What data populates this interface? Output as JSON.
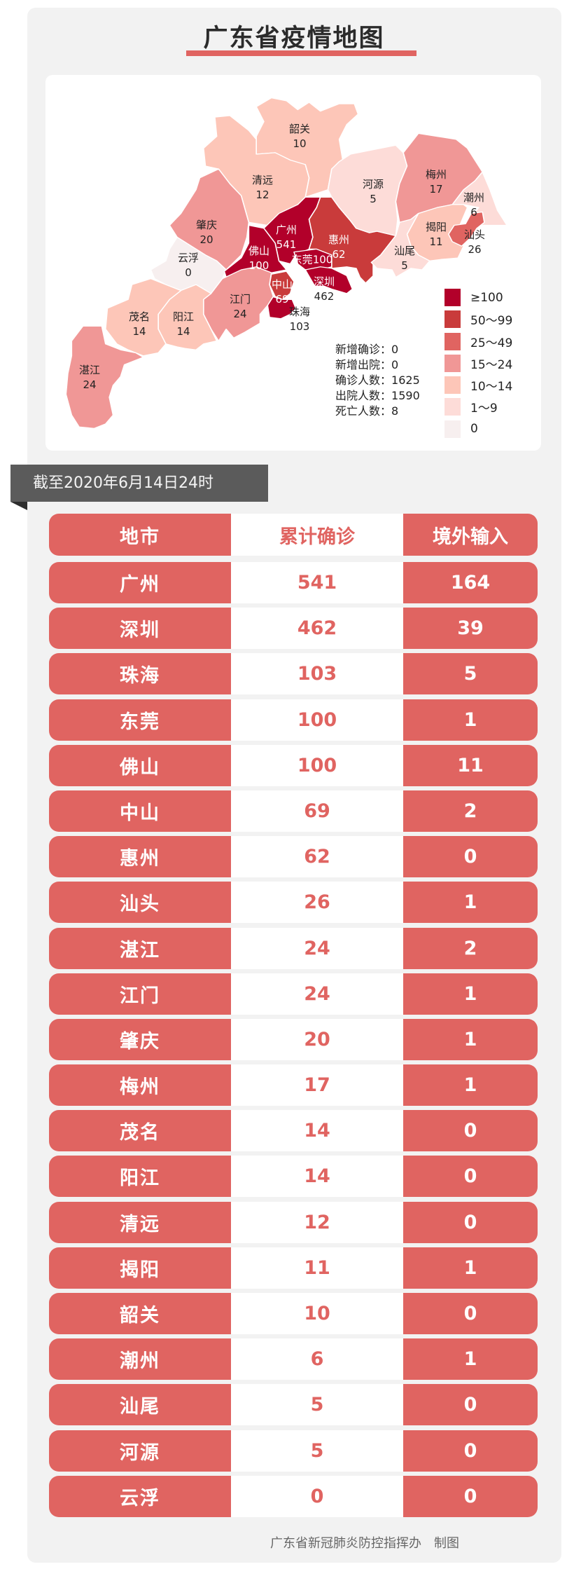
{
  "title": "广东省疫情地图",
  "colors": {
    "accent": "#e06461",
    "level_100": "#b2002a",
    "level_50_99": "#c93b3b",
    "level_25_49": "#e06461",
    "level_15_24": "#f09796",
    "level_10_14": "#fdc6b8",
    "level_1_9": "#fddcd8",
    "level_0": "#f7efef",
    "banner": "#5b5b5b"
  },
  "map": {
    "regions": [
      {
        "name": "韶关",
        "value": "10"
      },
      {
        "name": "清远",
        "value": "12"
      },
      {
        "name": "肇庆",
        "value": "20"
      },
      {
        "name": "云浮",
        "value": "0"
      },
      {
        "name": "广州",
        "value": "541"
      },
      {
        "name": "佛山",
        "value": "100"
      },
      {
        "name": "东莞",
        "value": "100"
      },
      {
        "name": "惠州",
        "value": "62"
      },
      {
        "name": "深圳",
        "value": "462"
      },
      {
        "name": "中山",
        "value": "69"
      },
      {
        "name": "珠海",
        "value": "103"
      },
      {
        "name": "江门",
        "value": "24"
      },
      {
        "name": "阳江",
        "value": "14"
      },
      {
        "name": "茂名",
        "value": "14"
      },
      {
        "name": "湛江",
        "value": "24"
      },
      {
        "name": "河源",
        "value": "5"
      },
      {
        "name": "梅州",
        "value": "17"
      },
      {
        "name": "潮州",
        "value": "6"
      },
      {
        "name": "揭阳",
        "value": "11"
      },
      {
        "name": "汕头",
        "value": "26"
      },
      {
        "name": "汕尾",
        "value": "5"
      }
    ],
    "stats": [
      {
        "label": "新增确诊",
        "value": "0"
      },
      {
        "label": "新增出院",
        "value": "0"
      },
      {
        "label": "确诊人数",
        "value": "1625"
      },
      {
        "label": "出院人数",
        "value": "1590"
      },
      {
        "label": "死亡人数",
        "value": "8"
      }
    ],
    "legend": [
      {
        "label": "≥100",
        "color": "#b2002a"
      },
      {
        "label": "50～99",
        "color": "#c93b3b"
      },
      {
        "label": "25～49",
        "color": "#e06461"
      },
      {
        "label": "15～24",
        "color": "#f09796"
      },
      {
        "label": "10～14",
        "color": "#fdc6b8"
      },
      {
        "label": "1～9",
        "color": "#fddcd8"
      },
      {
        "label": "0",
        "color": "#f7efef"
      }
    ]
  },
  "date_banner": "截至2020年6月14日24时",
  "table": {
    "headers": [
      "地市",
      "累计确诊",
      "境外输入"
    ],
    "rows": [
      [
        "广州",
        "541",
        "164"
      ],
      [
        "深圳",
        "462",
        "39"
      ],
      [
        "珠海",
        "103",
        "5"
      ],
      [
        "东莞",
        "100",
        "1"
      ],
      [
        "佛山",
        "100",
        "11"
      ],
      [
        "中山",
        "69",
        "2"
      ],
      [
        "惠州",
        "62",
        "0"
      ],
      [
        "汕头",
        "26",
        "1"
      ],
      [
        "湛江",
        "24",
        "2"
      ],
      [
        "江门",
        "24",
        "1"
      ],
      [
        "肇庆",
        "20",
        "1"
      ],
      [
        "梅州",
        "17",
        "1"
      ],
      [
        "茂名",
        "14",
        "0"
      ],
      [
        "阳江",
        "14",
        "0"
      ],
      [
        "清远",
        "12",
        "0"
      ],
      [
        "揭阳",
        "11",
        "1"
      ],
      [
        "韶关",
        "10",
        "0"
      ],
      [
        "潮州",
        "6",
        "1"
      ],
      [
        "汕尾",
        "5",
        "0"
      ],
      [
        "河源",
        "5",
        "0"
      ],
      [
        "云浮",
        "0",
        "0"
      ]
    ]
  },
  "footer": "广东省新冠肺炎防控指挥办　制图"
}
